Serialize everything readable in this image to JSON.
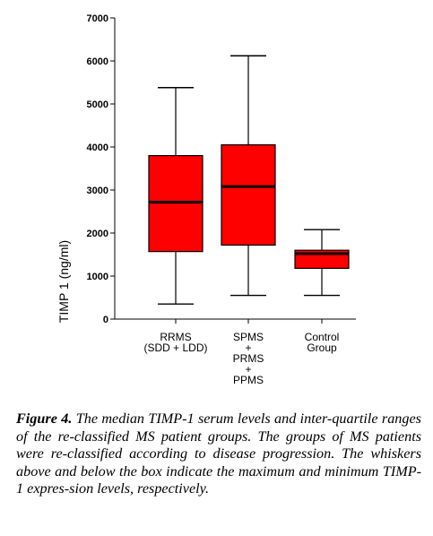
{
  "chart_data": {
    "type": "box",
    "xlabel": "",
    "ylabel": "TIMP 1 (ng/ml)",
    "ylim": [
      0,
      7000
    ],
    "yticks": [
      0,
      1000,
      2000,
      3000,
      4000,
      5000,
      6000,
      7000
    ],
    "grid": false,
    "box_color": "#ff0000",
    "categories": [
      {
        "lines": [
          "RRMS",
          "(SDD + LDD)"
        ]
      },
      {
        "lines": [
          "SPMS",
          "+",
          "PRMS",
          "+",
          "PPMS"
        ]
      },
      {
        "lines": [
          "Control",
          "Group"
        ]
      }
    ],
    "boxes": [
      {
        "min": 350,
        "q1": 1570,
        "median": 2720,
        "q3": 3800,
        "max": 5380
      },
      {
        "min": 550,
        "q1": 1720,
        "median": 3080,
        "q3": 4050,
        "max": 6120
      },
      {
        "min": 550,
        "q1": 1180,
        "median": 1520,
        "q3": 1600,
        "max": 2080
      }
    ]
  },
  "caption": {
    "label": "Figure 4.",
    "text": " The median TIMP-1 serum levels and inter-quartile ranges of the re-classified MS patient groups. The groups of MS patients were re-classified according to disease progression. The whiskers above and below the box indicate the maximum and minimum TIMP-1 expres-sion levels, respectively."
  }
}
